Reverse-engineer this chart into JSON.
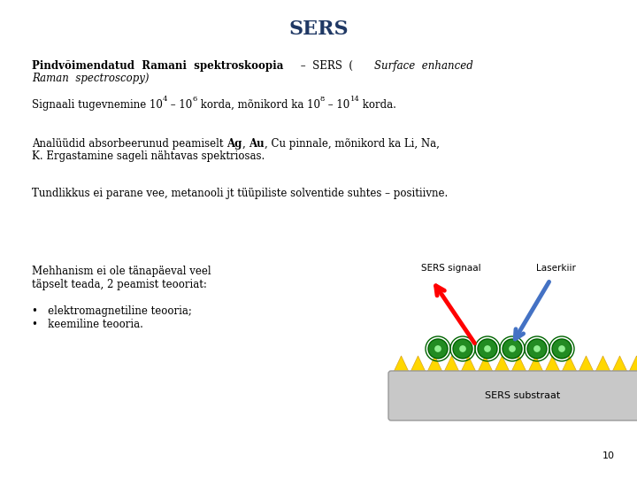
{
  "title": "SERS",
  "title_color": "#1F3864",
  "title_fontsize": 16,
  "background_color": "#ffffff",
  "text_color": "#000000",
  "page_number": "10",
  "base_fs": 8.5,
  "sup_fs": 6.0,
  "paragraph1_bold": "Pindvõimendatud  Ramani  spektroskoopia",
  "paragraph1_dash": "  –  SERS  (",
  "paragraph1_italic": "Surface  enhanced",
  "paragraph1_italic2": "Raman  spectroscopy",
  "paragraph1_end": ")",
  "paragraph4": "Tundlikkus ei parane vee, metanooli jt tüüpiliste solventide suhtes – positiivne.",
  "left_text1": "Mehhanism ei ole tänapäeval veel\ntäpselt teada, 2 peamist teooriat:",
  "bullet1": "elektromagnetiline teooria;",
  "bullet2": "keemiline teooria.",
  "sers_signaal_label": "SERS signaal",
  "laserkiir_label": "Laserkiir",
  "sers_substraat_label": "SERS substraat",
  "red_arrow_color": "#FF0000",
  "blue_arrow_color": "#4472C4",
  "triangle_face": "#FFD700",
  "triangle_edge": "#DAA520",
  "circle_face": "#228B22",
  "circle_edge": "#006400",
  "substrate_face": "#C8C8C8",
  "substrate_edge": "#999999"
}
